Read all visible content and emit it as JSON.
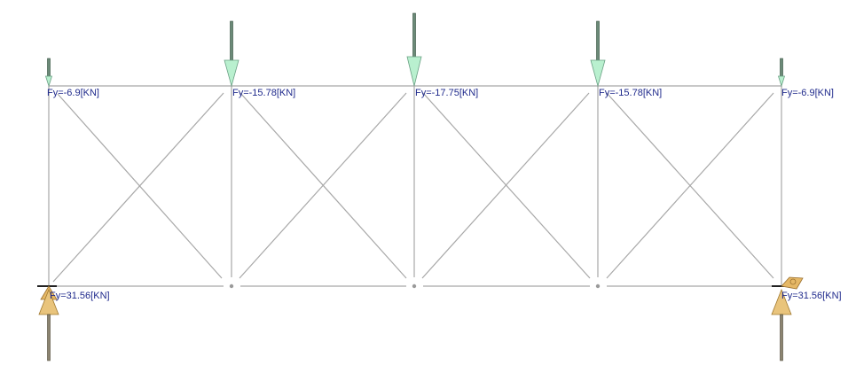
{
  "diagram": {
    "loads": [
      {
        "label": "Fy=-6.9[KN]"
      },
      {
        "label": "Fy=-15.78[KN]"
      },
      {
        "label": "Fy=-17.75[KN]"
      },
      {
        "label": "Fy=-15.78[KN]"
      },
      {
        "label": "Fy=-6.9[KN]"
      }
    ],
    "reactions": [
      {
        "label": "Fy=31.56[KN]"
      },
      {
        "label": "Fy=31.56[KN]"
      }
    ],
    "colors": {
      "member": "#a8a8a8",
      "label": "#1f2a8c",
      "load_arrow_head": "#b9f0cf",
      "load_arrow_shaft": "#6b8a78",
      "reaction_arrow_head": "#e9c47c",
      "reaction_arrow_shaft": "#8c8470"
    }
  }
}
